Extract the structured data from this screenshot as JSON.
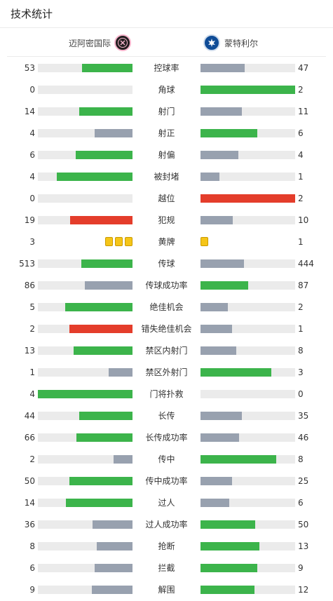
{
  "header": {
    "title": "技术统计"
  },
  "teams": {
    "home": {
      "name": "迈阿密国际",
      "logo_icon": "inter-miami-logo-icon"
    },
    "away": {
      "name": "蒙特利尔",
      "logo_icon": "cf-montreal-logo-icon"
    }
  },
  "colors": {
    "better": "#3cb44b",
    "worse": "#98a1af",
    "foul_card": "#e43d2b",
    "card_yellow": "#f5c518",
    "track": "#ebebeb"
  },
  "stats": [
    {
      "label": "控球率",
      "home": "53",
      "away": "47",
      "home_ratio": 0.53,
      "away_ratio": 0.47,
      "home_color": "#3cb44b",
      "away_color": "#98a1af"
    },
    {
      "label": "角球",
      "home": "0",
      "away": "2",
      "home_ratio": 0,
      "away_ratio": 1,
      "home_color": "#3cb44b",
      "away_color": "#3cb44b"
    },
    {
      "label": "射门",
      "home": "14",
      "away": "11",
      "home_ratio": 0.56,
      "away_ratio": 0.44,
      "home_color": "#3cb44b",
      "away_color": "#98a1af"
    },
    {
      "label": "射正",
      "home": "4",
      "away": "6",
      "home_ratio": 0.4,
      "away_ratio": 0.6,
      "home_color": "#98a1af",
      "away_color": "#3cb44b"
    },
    {
      "label": "射偏",
      "home": "6",
      "away": "4",
      "home_ratio": 0.6,
      "away_ratio": 0.4,
      "home_color": "#3cb44b",
      "away_color": "#98a1af"
    },
    {
      "label": "被封堵",
      "home": "4",
      "away": "1",
      "home_ratio": 0.8,
      "away_ratio": 0.2,
      "home_color": "#3cb44b",
      "away_color": "#98a1af"
    },
    {
      "label": "越位",
      "home": "0",
      "away": "2",
      "home_ratio": 0,
      "away_ratio": 1,
      "home_color": "#e43d2b",
      "away_color": "#e43d2b"
    },
    {
      "label": "犯规",
      "home": "19",
      "away": "10",
      "home_ratio": 0.66,
      "away_ratio": 0.34,
      "home_color": "#e43d2b",
      "away_color": "#98a1af"
    },
    {
      "label": "黄牌",
      "home": "3",
      "away": "1",
      "cards": true,
      "home_cards": 3,
      "away_cards": 1
    },
    {
      "label": "传球",
      "home": "513",
      "away": "444",
      "home_ratio": 0.54,
      "away_ratio": 0.46,
      "home_color": "#3cb44b",
      "away_color": "#98a1af"
    },
    {
      "label": "传球成功率",
      "home": "86",
      "away": "87",
      "home_ratio": 0.5,
      "away_ratio": 0.5,
      "home_color": "#98a1af",
      "away_color": "#3cb44b"
    },
    {
      "label": "绝佳机会",
      "home": "5",
      "away": "2",
      "home_ratio": 0.71,
      "away_ratio": 0.29,
      "home_color": "#3cb44b",
      "away_color": "#98a1af"
    },
    {
      "label": "错失绝佳机会",
      "home": "2",
      "away": "1",
      "home_ratio": 0.67,
      "away_ratio": 0.33,
      "home_color": "#e43d2b",
      "away_color": "#98a1af"
    },
    {
      "label": "禁区内射门",
      "home": "13",
      "away": "8",
      "home_ratio": 0.62,
      "away_ratio": 0.38,
      "home_color": "#3cb44b",
      "away_color": "#98a1af"
    },
    {
      "label": "禁区外射门",
      "home": "1",
      "away": "3",
      "home_ratio": 0.25,
      "away_ratio": 0.75,
      "home_color": "#98a1af",
      "away_color": "#3cb44b"
    },
    {
      "label": "门将扑救",
      "home": "4",
      "away": "0",
      "home_ratio": 1,
      "away_ratio": 0,
      "home_color": "#3cb44b",
      "away_color": "#98a1af"
    },
    {
      "label": "长传",
      "home": "44",
      "away": "35",
      "home_ratio": 0.56,
      "away_ratio": 0.44,
      "home_color": "#3cb44b",
      "away_color": "#98a1af"
    },
    {
      "label": "长传成功率",
      "home": "66",
      "away": "46",
      "home_ratio": 0.59,
      "away_ratio": 0.41,
      "home_color": "#3cb44b",
      "away_color": "#98a1af"
    },
    {
      "label": "传中",
      "home": "2",
      "away": "8",
      "home_ratio": 0.2,
      "away_ratio": 0.8,
      "home_color": "#98a1af",
      "away_color": "#3cb44b"
    },
    {
      "label": "传中成功率",
      "home": "50",
      "away": "25",
      "home_ratio": 0.67,
      "away_ratio": 0.33,
      "home_color": "#3cb44b",
      "away_color": "#98a1af"
    },
    {
      "label": "过人",
      "home": "14",
      "away": "6",
      "home_ratio": 0.7,
      "away_ratio": 0.3,
      "home_color": "#3cb44b",
      "away_color": "#98a1af"
    },
    {
      "label": "过人成功率",
      "home": "36",
      "away": "50",
      "home_ratio": 0.42,
      "away_ratio": 0.58,
      "home_color": "#98a1af",
      "away_color": "#3cb44b"
    },
    {
      "label": "抢断",
      "home": "8",
      "away": "13",
      "home_ratio": 0.38,
      "away_ratio": 0.62,
      "home_color": "#98a1af",
      "away_color": "#3cb44b"
    },
    {
      "label": "拦截",
      "home": "6",
      "away": "9",
      "home_ratio": 0.4,
      "away_ratio": 0.6,
      "home_color": "#98a1af",
      "away_color": "#3cb44b"
    },
    {
      "label": "解围",
      "home": "9",
      "away": "12",
      "home_ratio": 0.43,
      "away_ratio": 0.57,
      "home_color": "#98a1af",
      "away_color": "#3cb44b"
    }
  ]
}
